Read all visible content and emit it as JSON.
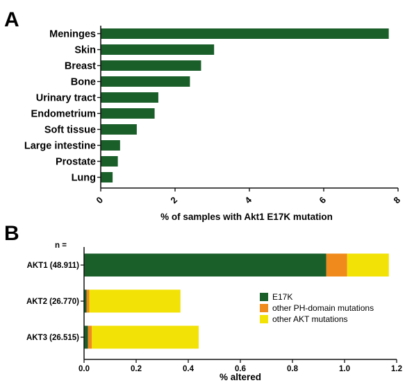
{
  "panels": {
    "a_label": "A",
    "b_label": "B"
  },
  "colors": {
    "e17k": "#1a5e2a",
    "other_ph": "#f08a1c",
    "other_akt": "#f2e205",
    "axis": "#111111"
  },
  "chart_data": [
    {
      "type": "bar",
      "orientation": "horizontal",
      "categories": [
        "Meninges",
        "Skin",
        "Breast",
        "Bone",
        "Urinary tract",
        "Endometrium",
        "Soft tissue",
        "Large intestine",
        "Prostate",
        "Lung"
      ],
      "values": [
        7.75,
        3.05,
        2.7,
        2.4,
        1.55,
        1.45,
        0.97,
        0.52,
        0.46,
        0.32
      ],
      "xlabel": "% of samples with Akt1 E17K mutation",
      "ylabel": "",
      "xlim": [
        0,
        8
      ],
      "xticks": [
        "0",
        "2",
        "4",
        "6",
        "8"
      ],
      "grid": false
    },
    {
      "type": "bar",
      "orientation": "horizontal",
      "stacked": true,
      "n_label": "n =",
      "categories": [
        "AKT1 (48.911)",
        "AKT2 (26.770)",
        "AKT3 (26.515)"
      ],
      "series": [
        {
          "name": "E17K",
          "values": [
            0.93,
            0.01,
            0.015
          ]
        },
        {
          "name": "other PH-domain mutations",
          "values": [
            0.08,
            0.01,
            0.015
          ]
        },
        {
          "name": "other AKT mutations",
          "values": [
            0.16,
            0.35,
            0.41
          ]
        }
      ],
      "xlabel": "% altered",
      "ylabel": "",
      "xlim": [
        0,
        1.2
      ],
      "xticks": [
        "0.0",
        "0.2",
        "0.4",
        "0.6",
        "0.8",
        "1.0",
        "1.2"
      ],
      "legend_position": "right",
      "grid": false
    }
  ]
}
